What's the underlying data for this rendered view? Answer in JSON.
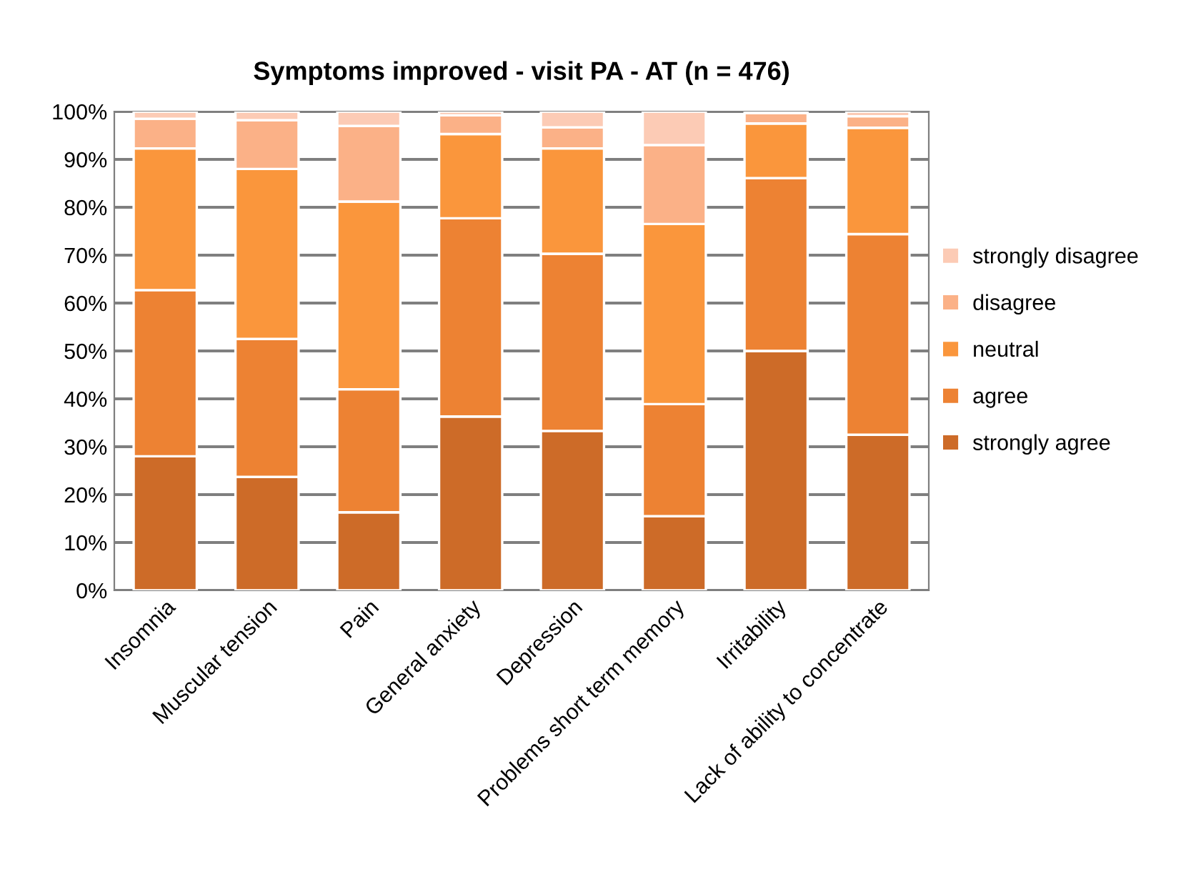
{
  "chart_data": {
    "type": "bar",
    "stacked": true,
    "title": "Symptoms improved - visit PA - AT (n = 476)",
    "categories": [
      "Insomnia",
      "Muscular tension",
      "Pain",
      "General anxiety",
      "Depression",
      "Problems short term memory",
      "Irritability",
      "Lack of ability to concentrate"
    ],
    "series": [
      {
        "name": "strongly agree",
        "color": "#cd6b28",
        "values": [
          28,
          23.7,
          16.3,
          36.3,
          33.3,
          15.5,
          50,
          32.5
        ]
      },
      {
        "name": "agree",
        "color": "#ed8233",
        "values": [
          34.7,
          28.8,
          25.7,
          41.4,
          37.0,
          23.4,
          36.1,
          41.9
        ]
      },
      {
        "name": "neutral",
        "color": "#fa963c",
        "values": [
          29.6,
          35.5,
          39.2,
          17.6,
          22.0,
          37.6,
          11.4,
          22.2
        ]
      },
      {
        "name": "disagree",
        "color": "#fbb187",
        "values": [
          6.2,
          10.2,
          15.8,
          3.9,
          4.4,
          16.5,
          2.2,
          2.4
        ]
      },
      {
        "name": "strongly disagree",
        "color": "#fccbb5",
        "values": [
          1.5,
          1.8,
          3.0,
          0.8,
          3.3,
          7.0,
          null,
          1.0
        ]
      }
    ],
    "ylim": [
      0,
      100
    ],
    "yticks": [
      {
        "value": 0,
        "label": "0%"
      },
      {
        "value": 10,
        "label": "10%"
      },
      {
        "value": 20,
        "label": "20%"
      },
      {
        "value": 30,
        "label": "30%"
      },
      {
        "value": 40,
        "label": "40%"
      },
      {
        "value": 50,
        "label": "50%"
      },
      {
        "value": 60,
        "label": "60%"
      },
      {
        "value": 70,
        "label": "70%"
      },
      {
        "value": 80,
        "label": "80%"
      },
      {
        "value": 90,
        "label": "90%"
      },
      {
        "value": 100,
        "label": "100%"
      }
    ],
    "grid": "y",
    "legend": "right"
  }
}
